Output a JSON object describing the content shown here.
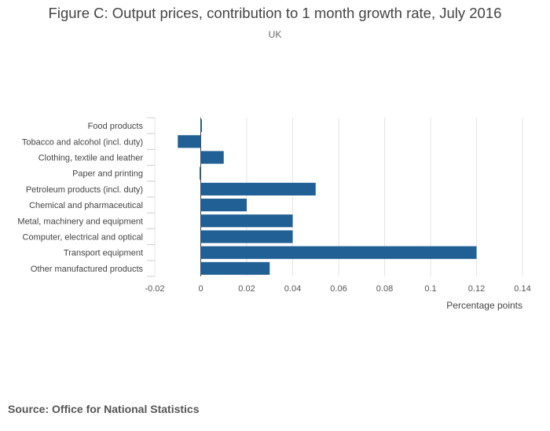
{
  "chart_data": {
    "type": "bar",
    "orientation": "horizontal",
    "title": "Figure C: Output prices, contribution to 1 month growth rate, July 2016",
    "subtitle": "UK",
    "xlabel": "Percentage points",
    "ylabel": "",
    "categories": [
      "Food products",
      "Tobacco and alcohol (incl. duty)",
      "Clothing, textile and leather",
      "Paper and printing",
      "Petroleum products (incl. duty)",
      "Chemical and pharmaceutical",
      "Metal, machinery and equipment",
      "Computer, electrical and optical",
      "Transport equipment",
      "Other manufactured products"
    ],
    "values": [
      0.0005,
      -0.01,
      0.01,
      -0.0005,
      0.05,
      0.02,
      0.04,
      0.04,
      0.12,
      0.03
    ],
    "xlim": [
      -0.02,
      0.14
    ],
    "xticks": [
      -0.02,
      0,
      0.02,
      0.04,
      0.06,
      0.08,
      0.1,
      0.12,
      0.14
    ],
    "xtick_labels": [
      "-0.02",
      "0",
      "0.02",
      "0.04",
      "0.06",
      "0.08",
      "0.1",
      "0.12",
      "0.14"
    ],
    "grid": true,
    "bar_color": "#206095",
    "grid_color": "#e5e5e5"
  },
  "source": "Source: Office for National Statistics"
}
